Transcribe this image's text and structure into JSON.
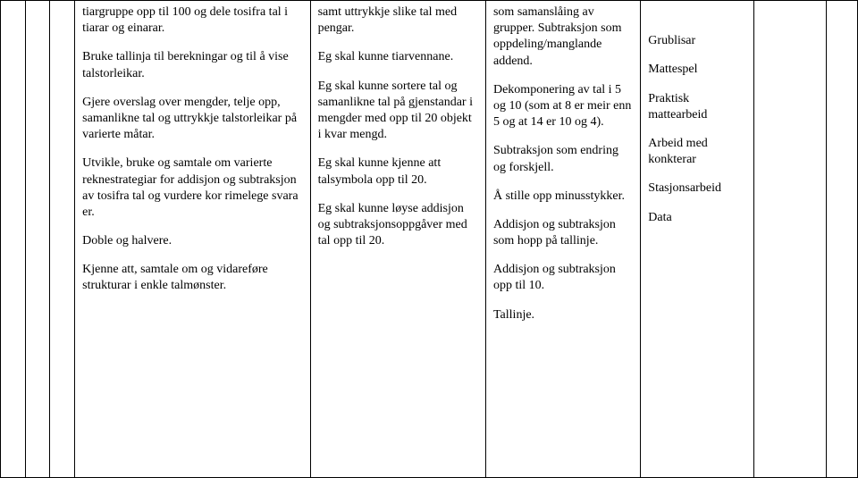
{
  "col1": {
    "p1": "tiargruppe opp til 100 og dele tosifra tal i tiarar og einarar.",
    "p2": "Bruke tallinja til berekningar og til å vise talstorleikar.",
    "p3": "Gjere overslag over mengder, telje opp, samanlikne tal og uttrykkje talstorleikar på varierte måtar.",
    "p4": "Utvikle, bruke og samtale om varierte reknestrategiar for addisjon og subtraksjon av tosifra tal og vurdere kor rimelege svara er.",
    "p5": "Doble og halvere.",
    "p6": "Kjenne att, samtale om og vidareføre strukturar i enkle talmønster."
  },
  "col2": {
    "p1": "samt uttrykkje slike tal med pengar.",
    "p2": "Eg skal kunne tiarvennane.",
    "p3": "Eg skal kunne sortere tal og samanlikne tal på gjenstandar i mengder med opp til 20 objekt i kvar mengd.",
    "p4": "Eg skal kunne kjenne att talsymbola opp til 20.",
    "p5": "Eg skal kunne løyse addisjon og subtraksjonsoppgåver med tal opp til 20."
  },
  "col3": {
    "p1": "som samanslåing av grupper. Subtraksjon som oppdeling/manglande addend.",
    "p2": "Dekomponering av tal i 5 og 10 (som at 8 er meir enn 5 og at 14 er 10 og 4).",
    "p3": "Subtraksjon som endring og forskjell.",
    "p4": "Å stille opp minusstykker.",
    "p5": "Addisjon og subtraksjon som hopp på tallinje.",
    "p6": "Addisjon og subtraksjon opp til 10.",
    "p7": "Tallinje."
  },
  "col4": {
    "p1": "Grublisar",
    "p2": "Mattespel",
    "p3": "Praktisk mattearbeid",
    "p4": "Arbeid med konkterar",
    "p5": "Stasjonsarbeid",
    "p6": "Data"
  }
}
